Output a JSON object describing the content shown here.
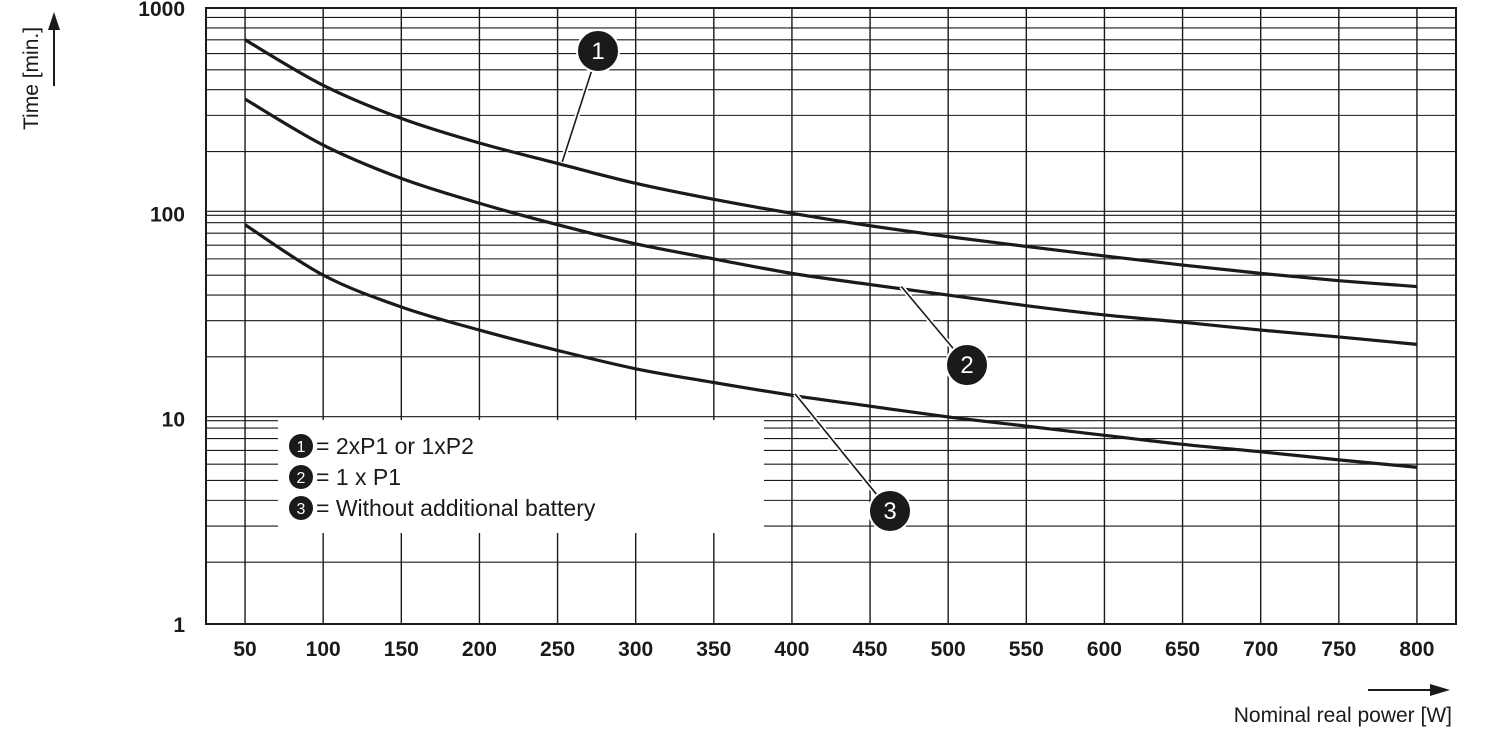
{
  "chart_data": {
    "type": "line",
    "xlabel": "Nominal real power [W]",
    "ylabel": "Time [min.]",
    "x_scale": "linear",
    "y_scale": "log",
    "xlim": [
      25,
      825
    ],
    "ylim": [
      1,
      1000
    ],
    "x_ticks": [
      "50",
      "100",
      "150",
      "200",
      "250",
      "300",
      "350",
      "400",
      "450",
      "500",
      "550",
      "600",
      "650",
      "700",
      "750",
      "800"
    ],
    "y_ticks": [
      "1",
      "10",
      "100",
      "1000"
    ],
    "grid": true,
    "legend_position": "lower-left",
    "series": [
      {
        "marker": "1",
        "name": "= 2xP1 or 1xP2",
        "x": [
          50,
          100,
          150,
          200,
          250,
          300,
          350,
          400,
          450,
          500,
          550,
          600,
          650,
          700,
          750,
          800
        ],
        "y": [
          700,
          420,
          290,
          220,
          175,
          140,
          117,
          100,
          87,
          77,
          69,
          62,
          56,
          51,
          47,
          44
        ]
      },
      {
        "marker": "2",
        "name": "= 1 x P1",
        "x": [
          50,
          100,
          150,
          200,
          250,
          300,
          350,
          400,
          450,
          500,
          550,
          600,
          650,
          700,
          750,
          800
        ],
        "y": [
          360,
          215,
          148,
          112,
          88,
          71,
          60,
          51,
          45,
          40,
          35.5,
          32,
          29.5,
          27,
          25,
          23
        ]
      },
      {
        "marker": "3",
        "name": "= Without additional battery",
        "x": [
          50,
          100,
          150,
          200,
          250,
          300,
          350,
          400,
          450,
          500,
          550,
          600,
          650,
          700,
          750,
          800
        ],
        "y": [
          88,
          50,
          35,
          27,
          21.5,
          17.5,
          15,
          13,
          11.5,
          10.2,
          9.2,
          8.3,
          7.5,
          6.9,
          6.3,
          5.8
        ]
      }
    ],
    "callouts": [
      {
        "marker": "1",
        "at_x": 253,
        "at_y": 178
      },
      {
        "marker": "2",
        "at_x": 470,
        "at_y": 44
      },
      {
        "marker": "3",
        "at_x": 402,
        "at_y": 13.2
      }
    ]
  }
}
